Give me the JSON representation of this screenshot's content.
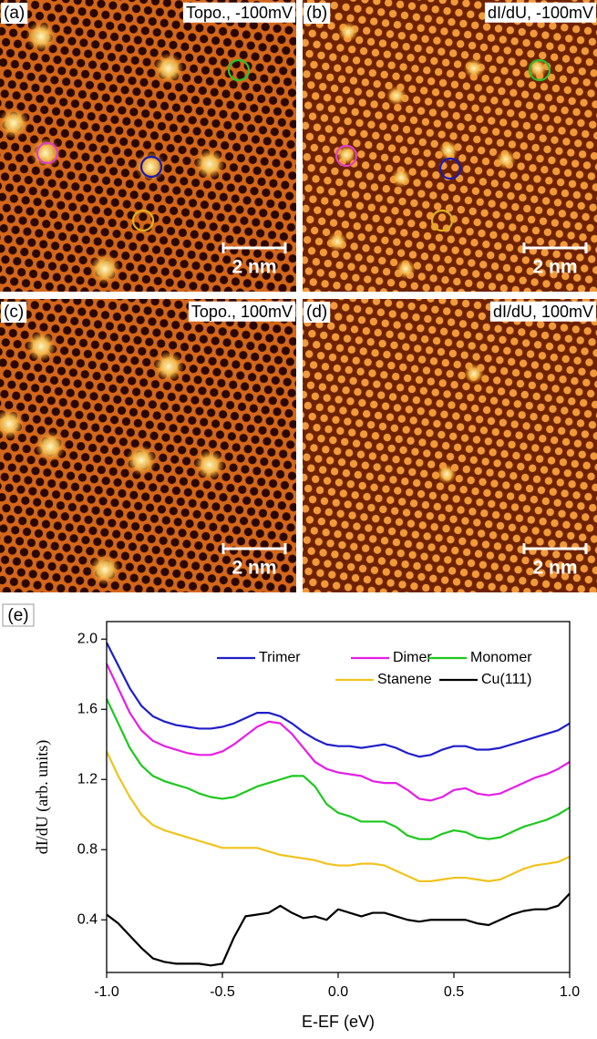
{
  "panels": [
    {
      "label": "(a)",
      "caption": "Topo., -100mV",
      "scale_bar": "2 nm"
    },
    {
      "label": "(b)",
      "caption": "dI/dU, -100mV",
      "scale_bar": "2 nm"
    },
    {
      "label": "(c)",
      "caption": "Topo., 100mV",
      "scale_bar": "2 nm"
    },
    {
      "label": "(d)",
      "caption": "dI/dU, 100mV",
      "scale_bar": "2 nm"
    }
  ],
  "chart_data": {
    "type": "line",
    "panel_label": "(e)",
    "x_label": "E-EF (eV)",
    "y_label": "dI/dU (arb. units)",
    "xlim": [
      -1,
      1
    ],
    "ylim": [
      0.1,
      2.1
    ],
    "xticks": [
      {
        "value": -1,
        "label": "-1.0"
      },
      -0.5,
      {
        "value": 0,
        "label": "0.0"
      },
      0.5,
      {
        "value": 1,
        "label": "1.0"
      }
    ],
    "yticks": [
      0.4,
      0.8,
      1.2,
      1.6,
      {
        "value": 2,
        "label": "2.0"
      }
    ],
    "x": [
      -1,
      -0.95,
      -0.9,
      -0.85,
      -0.8,
      -0.75,
      -0.7,
      -0.65,
      -0.6,
      -0.55,
      -0.5,
      -0.45,
      -0.4,
      -0.35,
      -0.3,
      -0.25,
      -0.2,
      -0.15,
      -0.1,
      -0.05,
      0,
      0.05,
      0.1,
      0.15,
      0.2,
      0.25,
      0.3,
      0.35,
      0.4,
      0.45,
      0.5,
      0.55,
      0.6,
      0.65,
      0.7,
      0.75,
      0.8,
      0.85,
      0.9,
      0.95,
      1
    ],
    "series": [
      {
        "name": "Trimer",
        "color": "#1f1fc8",
        "values": [
          1.98,
          1.85,
          1.72,
          1.62,
          1.56,
          1.53,
          1.51,
          1.5,
          1.49,
          1.49,
          1.5,
          1.52,
          1.55,
          1.58,
          1.58,
          1.56,
          1.52,
          1.47,
          1.43,
          1.4,
          1.39,
          1.39,
          1.38,
          1.39,
          1.4,
          1.38,
          1.35,
          1.33,
          1.34,
          1.37,
          1.39,
          1.39,
          1.37,
          1.37,
          1.38,
          1.4,
          1.42,
          1.44,
          1.46,
          1.48,
          1.52
        ]
      },
      {
        "name": "Dimer",
        "color": "#e61ee6",
        "values": [
          1.86,
          1.72,
          1.58,
          1.48,
          1.42,
          1.39,
          1.37,
          1.35,
          1.34,
          1.34,
          1.36,
          1.4,
          1.45,
          1.5,
          1.53,
          1.52,
          1.46,
          1.38,
          1.3,
          1.26,
          1.24,
          1.23,
          1.22,
          1.19,
          1.18,
          1.18,
          1.14,
          1.09,
          1.08,
          1.1,
          1.14,
          1.15,
          1.12,
          1.11,
          1.12,
          1.15,
          1.18,
          1.21,
          1.23,
          1.26,
          1.3
        ]
      },
      {
        "name": "Monomer",
        "color": "#1ec81e",
        "values": [
          1.66,
          1.52,
          1.38,
          1.28,
          1.22,
          1.19,
          1.17,
          1.15,
          1.12,
          1.1,
          1.09,
          1.1,
          1.13,
          1.16,
          1.18,
          1.2,
          1.22,
          1.22,
          1.16,
          1.06,
          1.01,
          0.99,
          0.96,
          0.96,
          0.96,
          0.93,
          0.88,
          0.86,
          0.86,
          0.89,
          0.91,
          0.9,
          0.87,
          0.86,
          0.87,
          0.9,
          0.93,
          0.95,
          0.97,
          1,
          1.04
        ]
      },
      {
        "name": "Stanene",
        "color": "#f0c31e",
        "values": [
          1.36,
          1.22,
          1.1,
          1,
          0.94,
          0.91,
          0.89,
          0.87,
          0.85,
          0.83,
          0.81,
          0.81,
          0.81,
          0.81,
          0.79,
          0.77,
          0.76,
          0.75,
          0.74,
          0.72,
          0.71,
          0.71,
          0.72,
          0.72,
          0.71,
          0.68,
          0.65,
          0.62,
          0.62,
          0.63,
          0.64,
          0.64,
          0.63,
          0.62,
          0.63,
          0.66,
          0.69,
          0.71,
          0.72,
          0.73,
          0.76
        ]
      },
      {
        "name": "Cu(111)",
        "color": "#000000",
        "values": [
          0.43,
          0.38,
          0.31,
          0.24,
          0.18,
          0.16,
          0.15,
          0.15,
          0.15,
          0.14,
          0.15,
          0.3,
          0.42,
          0.43,
          0.44,
          0.48,
          0.44,
          0.41,
          0.42,
          0.4,
          0.46,
          0.44,
          0.42,
          0.44,
          0.44,
          0.42,
          0.4,
          0.39,
          0.4,
          0.4,
          0.4,
          0.4,
          0.38,
          0.37,
          0.4,
          0.43,
          0.45,
          0.46,
          0.46,
          0.48,
          0.55
        ]
      }
    ]
  }
}
